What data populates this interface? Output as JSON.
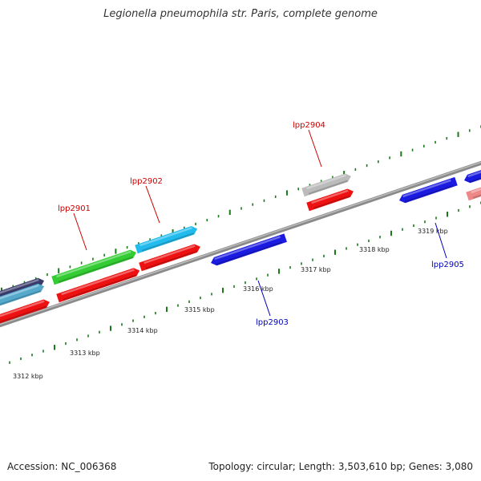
{
  "title": "Legionella pneumophila str. Paris, complete genome",
  "footer": {
    "accession": "Accession: NC_006368",
    "summary": "Topology: circular; Length: 3,503,610 bp; Genes: 3,080"
  },
  "scale": {
    "tick_labels": [
      "3312 kbp",
      "3313 kbp",
      "3314 kbp",
      "3315 kbp",
      "3316 kbp",
      "3317 kbp",
      "3318 kbp",
      "3319 kbp"
    ]
  },
  "gene_labels": [
    {
      "name": "lpp2901",
      "color": "#cc0000"
    },
    {
      "name": "lpp2902",
      "color": "#cc0000"
    },
    {
      "name": "lpp2904",
      "color": "#cc0000"
    },
    {
      "name": "lpp2903",
      "color": "#0000bb"
    },
    {
      "name": "lpp2905",
      "color": "#0000bb"
    }
  ],
  "colors": {
    "backbone": "#8a8a8a",
    "tick": "#1a7a1a",
    "red_gene": "#ee1111",
    "blue_gene": "#1a1ae0",
    "green_gene": "#33cc33",
    "cyan_gene": "#22bbee",
    "gray_gene": "#bbbbbb",
    "pink_gene": "#ee8888"
  }
}
